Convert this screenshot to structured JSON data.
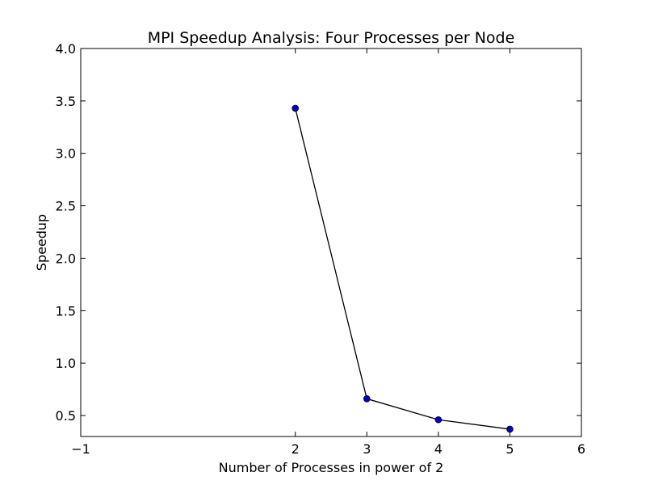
{
  "chart_data": {
    "type": "line",
    "title": "MPI Speedup Analysis: Four Processes per Node",
    "xlabel": "Number of Processes in power of 2",
    "ylabel": "Speedup",
    "xlim": [
      -1,
      6
    ],
    "ylim": [
      0.3,
      4.0
    ],
    "x_ticks": [
      -1,
      2,
      3,
      4,
      5,
      6
    ],
    "x_tick_labels": [
      "−1",
      "2",
      "3",
      "4",
      "5",
      "6"
    ],
    "y_ticks": [
      0.5,
      1.0,
      1.5,
      2.0,
      2.5,
      3.0,
      3.5,
      4.0
    ],
    "y_tick_labels": [
      "0.5",
      "1.0",
      "1.5",
      "2.0",
      "2.5",
      "3.0",
      "3.5",
      "4.0"
    ],
    "grid": false,
    "series": [
      {
        "x": [
          2,
          3,
          4,
          5
        ],
        "y": [
          3.43,
          0.66,
          0.46,
          0.37
        ],
        "line_color": "#000000",
        "marker_color": "#0000bf",
        "marker": "circle"
      }
    ]
  }
}
